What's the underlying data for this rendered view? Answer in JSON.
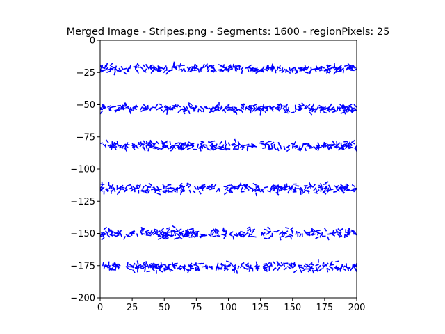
{
  "chart_data": {
    "type": "scatter",
    "title": "Merged Image - Stripes.png - Segments: 1600 - regionPixels: 25",
    "xlabel": "",
    "ylabel": "",
    "xlim": [
      0,
      200
    ],
    "ylim": [
      -200,
      0
    ],
    "x_ticks": [
      "0",
      "25",
      "50",
      "75",
      "100",
      "125",
      "150",
      "175",
      "200"
    ],
    "y_ticks": [
      "0",
      "−25",
      "−50",
      "−75",
      "−100",
      "−125",
      "−150",
      "−175",
      "−200"
    ],
    "grid": false,
    "segment_color": "#0000ff",
    "segment_count": 1600,
    "stripes": [
      {
        "center_y": -22,
        "spread": 9
      },
      {
        "center_y": -53,
        "spread": 9
      },
      {
        "center_y": -82,
        "spread": 9
      },
      {
        "center_y": -115,
        "spread": 11
      },
      {
        "center_y": -150,
        "spread": 11
      },
      {
        "center_y": -176,
        "spread": 10
      }
    ],
    "x_range": [
      0,
      200
    ],
    "segment_length": 3
  }
}
